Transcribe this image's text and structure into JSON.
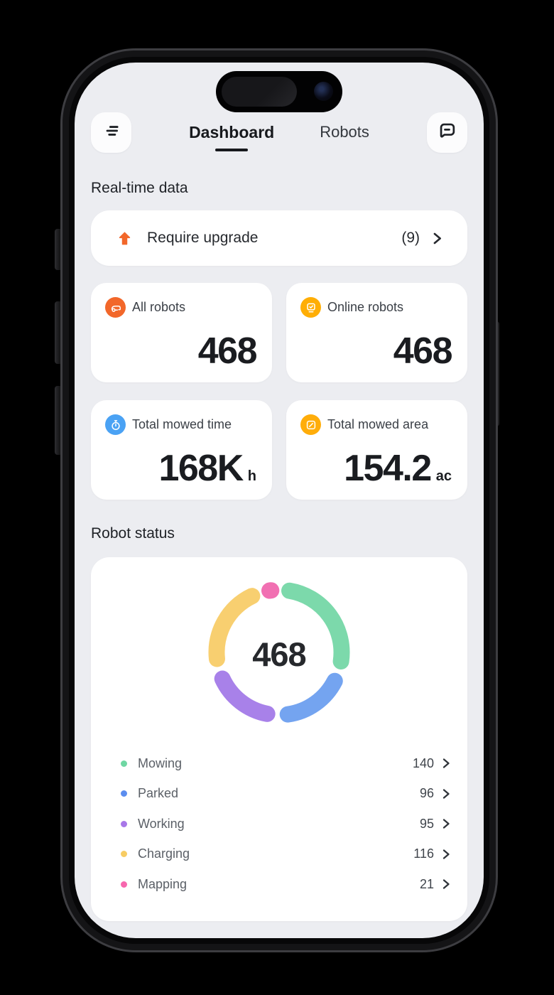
{
  "nav": {
    "tabs": [
      {
        "label": "Dashboard",
        "active": true
      },
      {
        "label": "Robots",
        "active": false
      }
    ]
  },
  "sections": {
    "realtime": "Real-time data",
    "robot_status": "Robot status"
  },
  "upgrade_card": {
    "label": "Require upgrade",
    "count": "(9)",
    "icon": "upgrade-arrow-icon",
    "icon_color": "#F2672A"
  },
  "stat_cards": [
    {
      "label": "All robots",
      "value": "468",
      "unit": "",
      "icon": "robot-mower-icon",
      "icon_bg": "#F2672A"
    },
    {
      "label": "Online robots",
      "value": "468",
      "unit": "",
      "icon": "monitor-check-icon",
      "icon_bg": "#FFAE05"
    },
    {
      "label": "Total mowed time",
      "value": "168K",
      "unit": "h",
      "icon": "stopwatch-icon",
      "icon_bg": "#4AA2F4"
    },
    {
      "label": "Total mowed area",
      "value": "154.2",
      "unit": "ac",
      "icon": "area-measure-icon",
      "icon_bg": "#FFAD0A"
    }
  ],
  "chart_data": {
    "type": "pie",
    "variant": "donut",
    "title": "Robot status",
    "center_label": "468",
    "total": 468,
    "legend_position": "bottom",
    "segments": [
      {
        "label": "Mowing",
        "value": 140,
        "color": "#7CD9AB",
        "dot_color": "#6FD7A3"
      },
      {
        "label": "Parked",
        "value": 96,
        "color": "#74A4F0",
        "dot_color": "#5B8DEF"
      },
      {
        "label": "Working",
        "value": 95,
        "color": "#A881E9",
        "dot_color": "#A877E8"
      },
      {
        "label": "Charging",
        "value": 116,
        "color": "#F8CF70",
        "dot_color": "#F7CC63"
      },
      {
        "label": "Mapping",
        "value": 21,
        "color": "#F170B2",
        "dot_color": "#F767AE"
      }
    ]
  }
}
